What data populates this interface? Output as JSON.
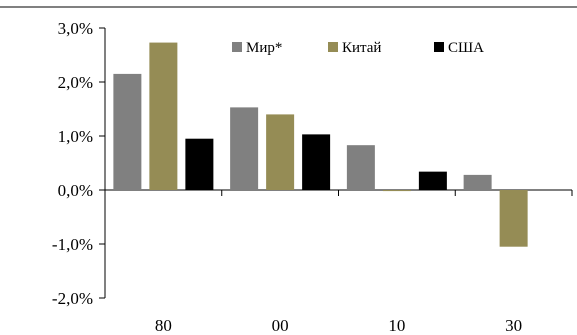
{
  "chart_data": {
    "type": "bar",
    "title": "",
    "xlabel": "",
    "ylabel": "",
    "categories": [
      "80",
      "00",
      "10",
      "30"
    ],
    "series": [
      {
        "name": "Мир*",
        "color": "#808080",
        "values": [
          2.15,
          1.53,
          0.83,
          0.28
        ]
      },
      {
        "name": "Китай",
        "color": "#958c55",
        "values": [
          2.73,
          1.4,
          -0.02,
          -1.05
        ]
      },
      {
        "name": "США",
        "color": "#000000",
        "values": [
          0.95,
          1.03,
          0.34,
          null
        ]
      }
    ],
    "ylim": [
      -2.0,
      3.0
    ],
    "yticks": [
      3.0,
      2.0,
      1.0,
      0.0,
      -1.0,
      -2.0
    ],
    "ytick_labels": [
      "3,0%",
      "2,0%",
      "1,0%",
      "0,0%",
      "-1,0%",
      "-2,0%"
    ],
    "grid": false,
    "legend_position": "top-center"
  }
}
